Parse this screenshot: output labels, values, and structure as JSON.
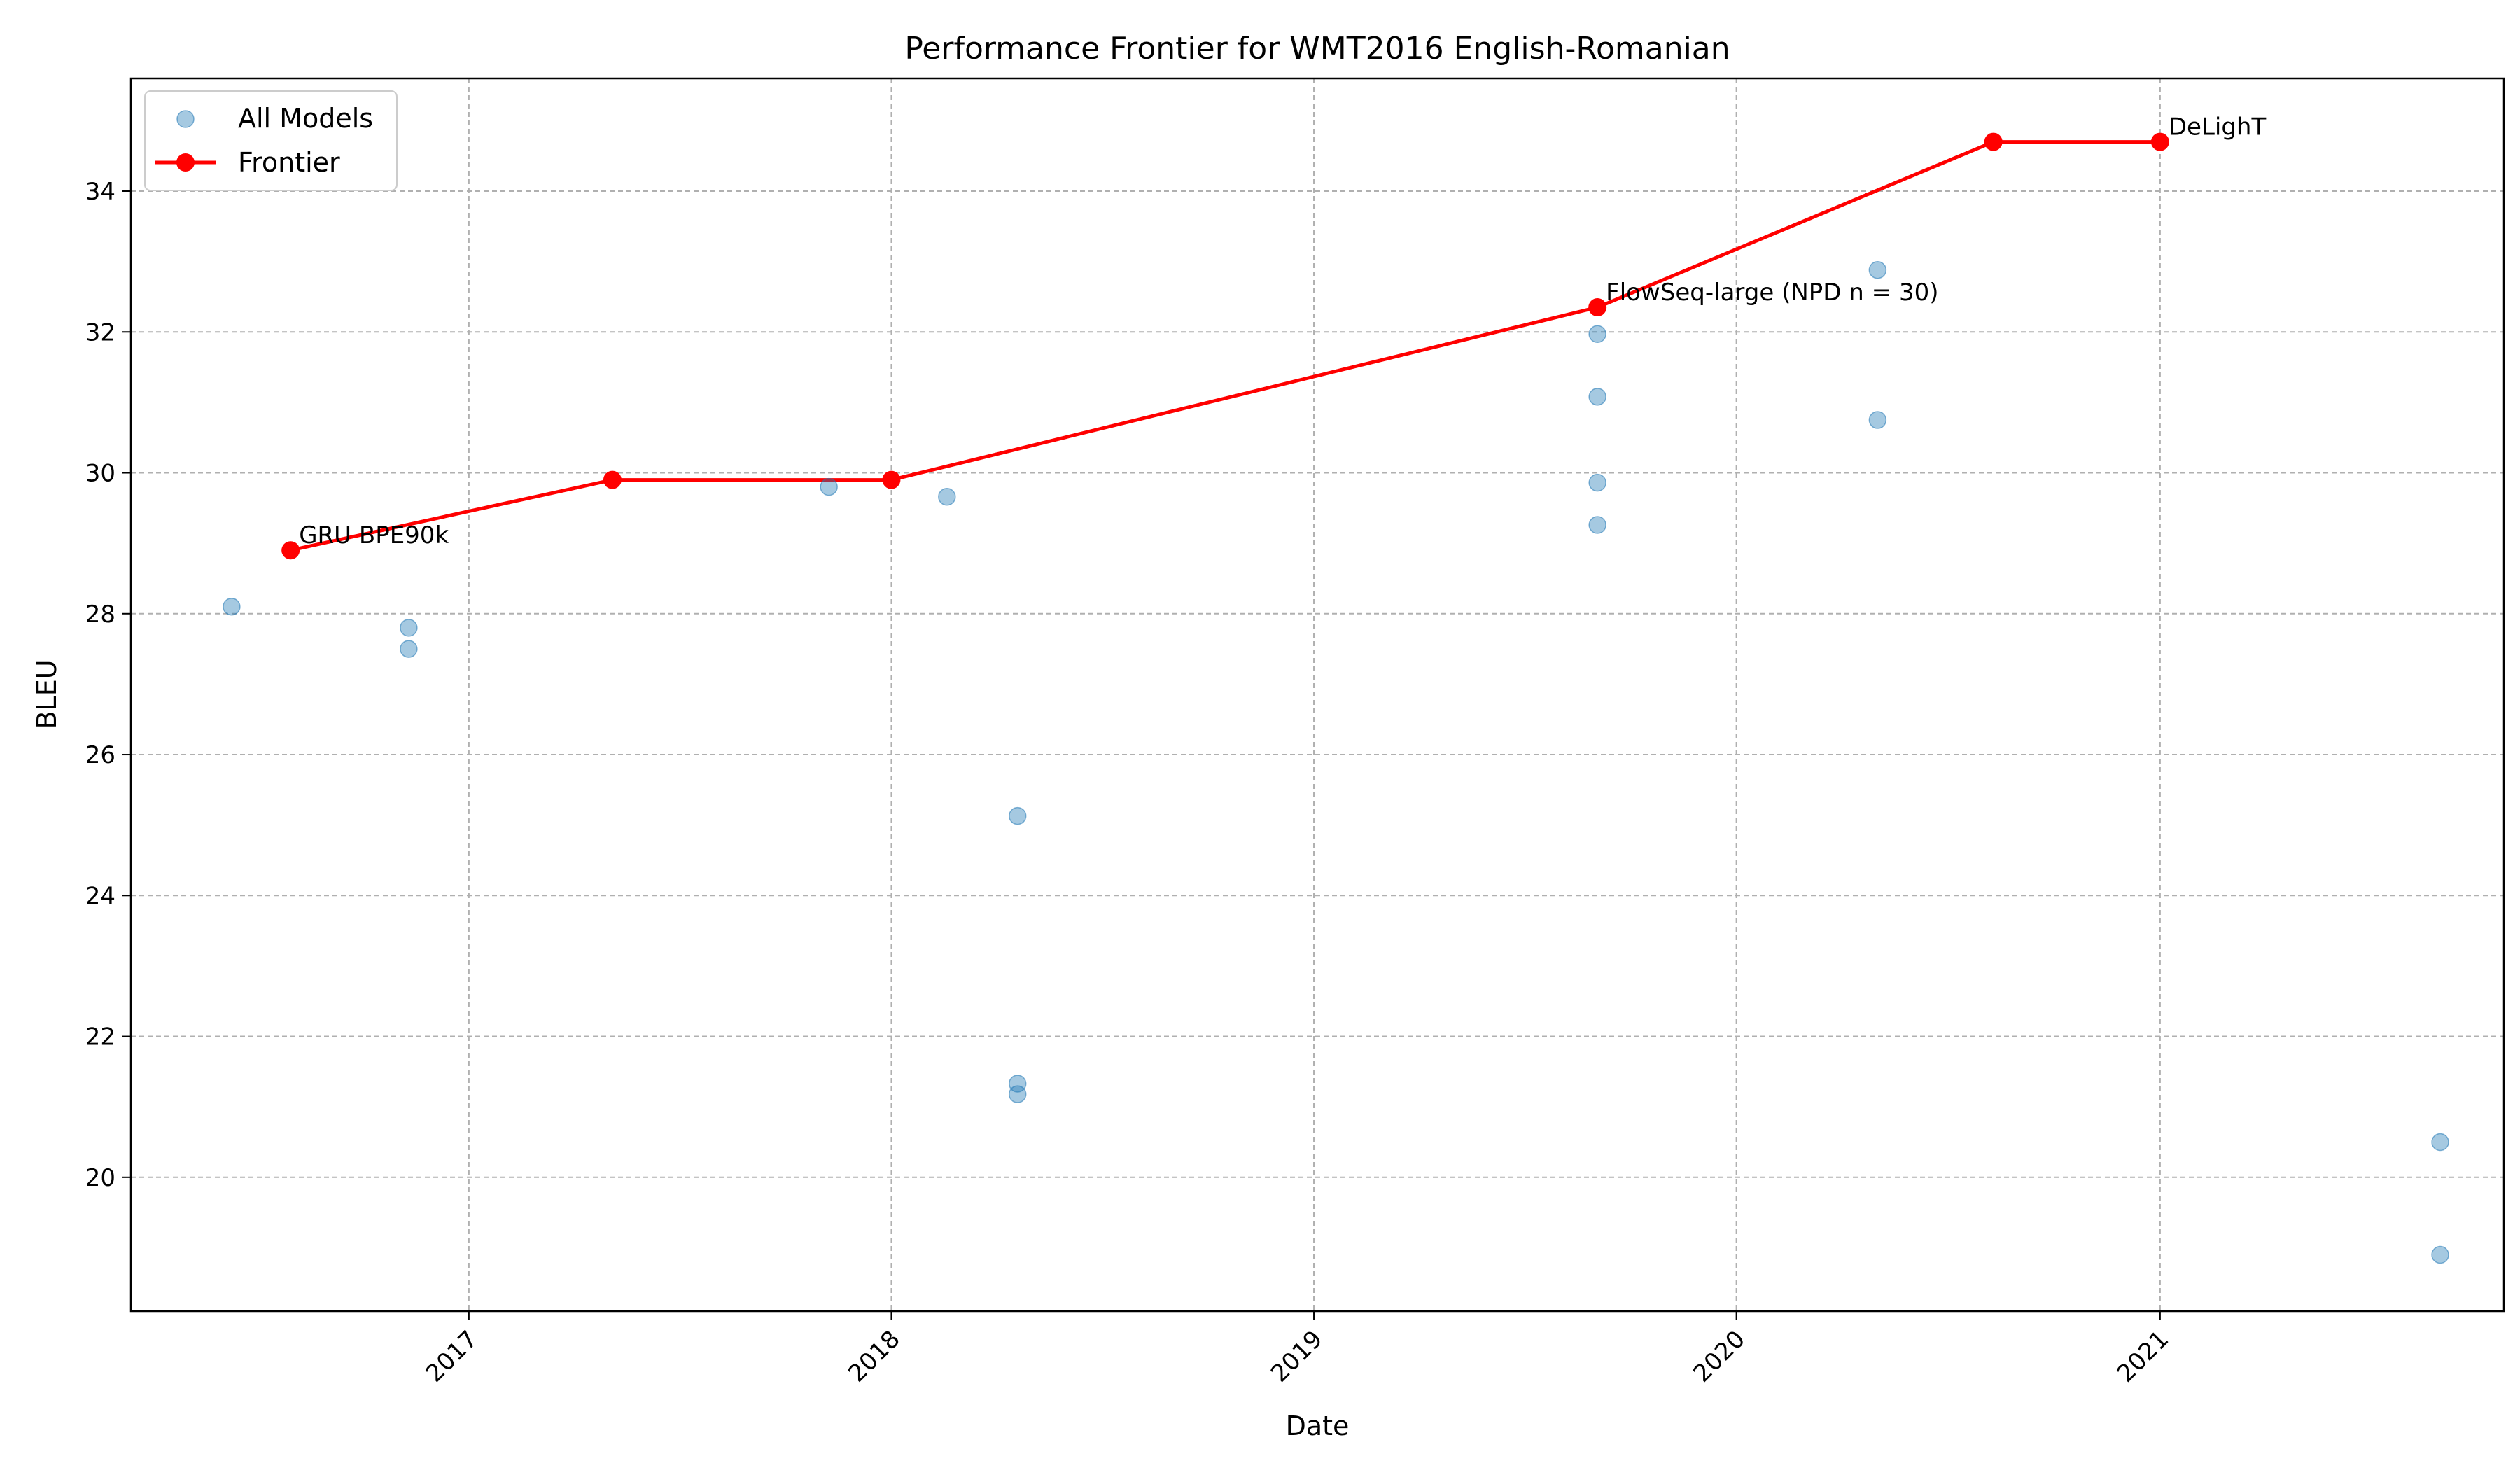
{
  "chart_data": {
    "type": "scatter",
    "title": "Performance Frontier for WMT2016 English-Romanian",
    "xlabel": "Date",
    "ylabel": "BLEU",
    "x_type": "date",
    "xlim": [
      "2016-03-15",
      "2021-10-25"
    ],
    "ylim": [
      18.1,
      35.6
    ],
    "x_ticks": [
      "2017",
      "2018",
      "2019",
      "2020",
      "2021"
    ],
    "y_ticks": [
      20,
      22,
      24,
      26,
      28,
      30,
      32,
      34
    ],
    "grid": true,
    "legend_position": "top-left",
    "series": [
      {
        "name": "All Models",
        "kind": "scatter",
        "color": "#1f77b4",
        "points": [
          {
            "x": "2016-06-10",
            "y": 28.1
          },
          {
            "x": "2016-11-10",
            "y": 27.8
          },
          {
            "x": "2016-11-10",
            "y": 27.5
          },
          {
            "x": "2017-11-08",
            "y": 29.8
          },
          {
            "x": "2018-02-18",
            "y": 29.66
          },
          {
            "x": "2018-04-20",
            "y": 25.13
          },
          {
            "x": "2018-04-20",
            "y": 21.33
          },
          {
            "x": "2018-04-20",
            "y": 21.18
          },
          {
            "x": "2019-09-03",
            "y": 31.97
          },
          {
            "x": "2019-09-03",
            "y": 31.08
          },
          {
            "x": "2019-09-03",
            "y": 29.86
          },
          {
            "x": "2019-09-03",
            "y": 29.26
          },
          {
            "x": "2020-05-02",
            "y": 32.88
          },
          {
            "x": "2020-05-02",
            "y": 30.75
          },
          {
            "x": "2021-08-31",
            "y": 20.5
          },
          {
            "x": "2021-08-31",
            "y": 18.9
          }
        ]
      },
      {
        "name": "Frontier",
        "kind": "line",
        "color": "#ff0000",
        "points": [
          {
            "x": "2016-07-31",
            "y": 28.9
          },
          {
            "x": "2017-05-05",
            "y": 29.9
          },
          {
            "x": "2018-01-01",
            "y": 29.9
          },
          {
            "x": "2019-09-03",
            "y": 32.35
          },
          {
            "x": "2020-08-10",
            "y": 34.7
          },
          {
            "x": "2021-01-01",
            "y": 34.7
          }
        ]
      }
    ],
    "annotations": [
      {
        "text": "GRU BPE90k",
        "x": "2016-07-31",
        "y": 28.9
      },
      {
        "text": "FlowSeq-large (NPD n = 30)",
        "x": "2019-09-03",
        "y": 32.35
      },
      {
        "text": "DeLighT",
        "x": "2021-01-01",
        "y": 34.7
      }
    ]
  }
}
